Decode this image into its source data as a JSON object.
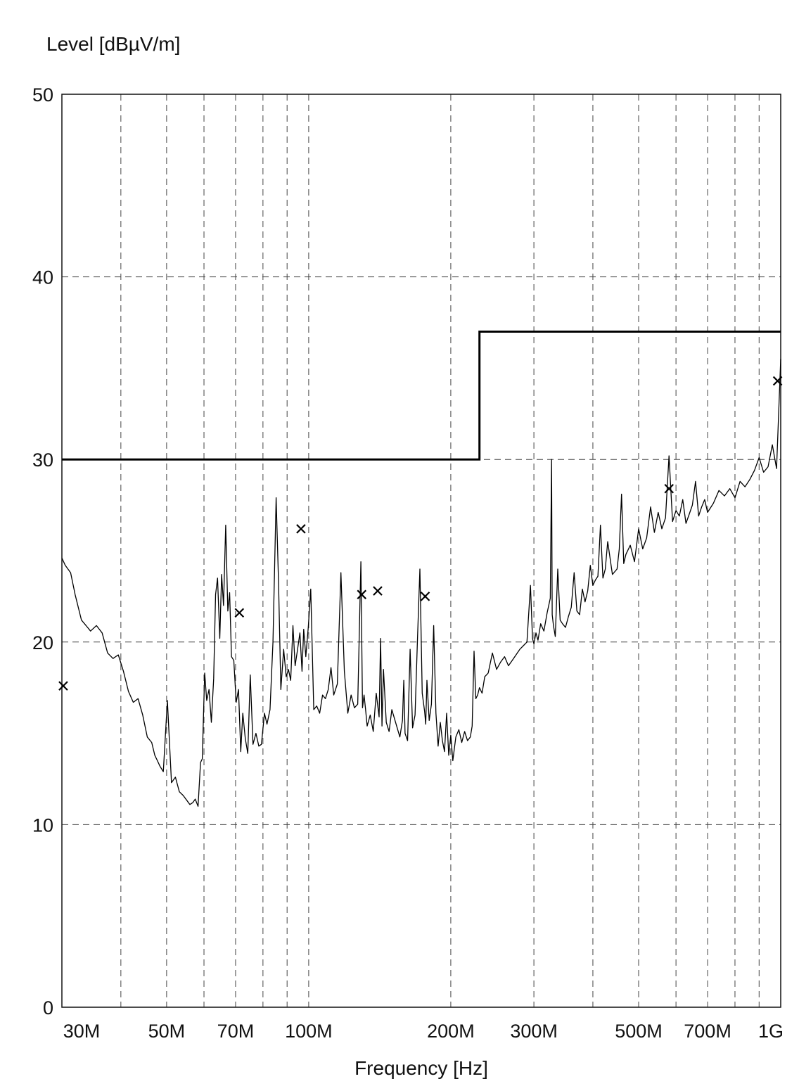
{
  "chart_data": {
    "type": "line",
    "title": "",
    "ylabel": "Level [dBµV/m]",
    "xlabel": "Frequency [Hz]",
    "x_scale": "log",
    "xlim_hz": [
      30000000,
      1000000000
    ],
    "ylim": [
      0,
      50
    ],
    "grid": true,
    "y_ticks": [
      {
        "value": 0,
        "label": "0"
      },
      {
        "value": 10,
        "label": "10"
      },
      {
        "value": 20,
        "label": "20"
      },
      {
        "value": 30,
        "label": "30"
      },
      {
        "value": 40,
        "label": "40"
      },
      {
        "value": 50,
        "label": "50"
      }
    ],
    "x_ticks": [
      {
        "value": 30000000,
        "label": "30M"
      },
      {
        "value": 50000000,
        "label": "50M"
      },
      {
        "value": 70000000,
        "label": "70M"
      },
      {
        "value": 100000000,
        "label": "100M"
      },
      {
        "value": 200000000,
        "label": "200M"
      },
      {
        "value": 300000000,
        "label": "300M"
      },
      {
        "value": 500000000,
        "label": "500M"
      },
      {
        "value": 700000000,
        "label": "700M"
      },
      {
        "value": 1000000000,
        "label": "1G"
      }
    ],
    "x_gridlines_hz": [
      40000000,
      50000000,
      60000000,
      70000000,
      80000000,
      90000000,
      100000000,
      200000000,
      300000000,
      400000000,
      500000000,
      600000000,
      700000000,
      800000000,
      900000000,
      1000000000
    ],
    "limit_line": {
      "x": [
        30000000,
        230000000,
        230000000,
        1000000000
      ],
      "y": [
        30,
        30,
        37,
        37
      ]
    },
    "measurement_trace": {
      "x": [
        30000000,
        30500000,
        31300000,
        32000000,
        33000000,
        34000000,
        34500000,
        35500000,
        36500000,
        37500000,
        38500000,
        39500000,
        40500000,
        41500000,
        42500000,
        43500000,
        44500000,
        45500000,
        46500000,
        47200000,
        47800000,
        48400000,
        49200000,
        50200000,
        51200000,
        52200000,
        53200000,
        54200000,
        55300000,
        56000000,
        56800000,
        57500000,
        58300000,
        59000000,
        59500000,
        60200000,
        60800000,
        61500000,
        62200000,
        62900000,
        63500000,
        64100000,
        64800000,
        65400000,
        66000000,
        66700000,
        67400000,
        68000000,
        68600000,
        69400000,
        70200000,
        71000000,
        71800000,
        72500000,
        73400000,
        74300000,
        75200000,
        76200000,
        77300000,
        78400000,
        79400000,
        80600000,
        81600000,
        82800000,
        84000000,
        85300000,
        86300000,
        87300000,
        88500000,
        89600000,
        90600000,
        91600000,
        92600000,
        93600000,
        94600000,
        95800000,
        96800000,
        97600000,
        98600000,
        99800000,
        101000000,
        102500000,
        104000000,
        105500000,
        107000000,
        108500000,
        110000000,
        111500000,
        113000000,
        115000000,
        117000000,
        119000000,
        121000000,
        123000000,
        125000000,
        127000000,
        129000000,
        130000000,
        131000000,
        132000000,
        133000000,
        135000000,
        137000000,
        139000000,
        141000000,
        142000000,
        143000000,
        144000000,
        146000000,
        148000000,
        150000000,
        152000000,
        154000000,
        156000000,
        158000000,
        159000000,
        160000000,
        162000000,
        164000000,
        166000000,
        168000000,
        170000000,
        172000000,
        174000000,
        176000000,
        177000000,
        178000000,
        180000000,
        182000000,
        184000000,
        186000000,
        188000000,
        190000000,
        192000000,
        194000000,
        196000000,
        198000000,
        200000000,
        202000000,
        205000000,
        208000000,
        211000000,
        214000000,
        217000000,
        220000000,
        222000000,
        224000000,
        226000000,
        228000000,
        230000000,
        233000000,
        236000000,
        240000000,
        245000000,
        250000000,
        255000000,
        260000000,
        265000000,
        270000000,
        275000000,
        280000000,
        285000000,
        290000000,
        295000000,
        298000000,
        300000000,
        303000000,
        306000000,
        310000000,
        315000000,
        320000000,
        325000000,
        327000000,
        328000000,
        330000000,
        333000000,
        337000000,
        341000000,
        345000000,
        350000000,
        355000000,
        360000000,
        365000000,
        370000000,
        375000000,
        380000000,
        385000000,
        390000000,
        395000000,
        400000000,
        405000000,
        410000000,
        415000000,
        420000000,
        425000000,
        430000000,
        440000000,
        450000000,
        455000000,
        460000000,
        465000000,
        470000000,
        480000000,
        490000000,
        500000000,
        510000000,
        520000000,
        530000000,
        540000000,
        550000000,
        560000000,
        570000000,
        580000000,
        590000000,
        600000000,
        610000000,
        620000000,
        630000000,
        640000000,
        650000000,
        660000000,
        670000000,
        680000000,
        690000000,
        700000000,
        720000000,
        740000000,
        760000000,
        780000000,
        800000000,
        820000000,
        840000000,
        860000000,
        880000000,
        900000000,
        920000000,
        940000000,
        960000000,
        980000000,
        1000000000
      ],
      "y": [
        24.6,
        24.2,
        23.8,
        22.6,
        21.2,
        20.8,
        20.6,
        20.9,
        20.5,
        19.4,
        19.1,
        19.3,
        18.4,
        17.3,
        16.7,
        16.9,
        16.0,
        14.8,
        14.5,
        13.8,
        13.5,
        13.2,
        12.9,
        16.8,
        12.3,
        12.6,
        11.8,
        11.6,
        11.3,
        11.1,
        11.2,
        11.4,
        11.0,
        13.4,
        13.6,
        18.3,
        16.8,
        17.4,
        15.6,
        18.0,
        22.6,
        23.5,
        20.2,
        23.7,
        22.0,
        26.4,
        21.7,
        22.7,
        19.2,
        19.0,
        16.7,
        17.4,
        14.0,
        16.1,
        14.7,
        13.9,
        18.2,
        14.4,
        15.0,
        14.3,
        14.4,
        16.1,
        15.5,
        16.3,
        20.0,
        27.9,
        23.3,
        17.4,
        19.6,
        18.1,
        18.5,
        17.9,
        20.9,
        18.7,
        19.5,
        20.5,
        18.4,
        20.7,
        19.2,
        20.8,
        22.9,
        16.3,
        16.5,
        16.1,
        17.1,
        16.9,
        17.4,
        18.6,
        17.1,
        17.7,
        23.8,
        18.4,
        16.1,
        17.1,
        16.4,
        16.6,
        24.4,
        16.4,
        17.1,
        16.3,
        15.4,
        16.0,
        15.1,
        17.2,
        15.9,
        20.2,
        15.4,
        18.5,
        15.6,
        15.1,
        16.3,
        15.8,
        15.3,
        14.8,
        15.7,
        17.9,
        15.0,
        14.6,
        19.6,
        15.3,
        16.0,
        20.2,
        24.0,
        17.2,
        16.2,
        15.5,
        17.9,
        15.7,
        16.6,
        20.9,
        16.1,
        14.3,
        15.6,
        14.6,
        14.0,
        16.1,
        13.8,
        14.9,
        13.5,
        14.8,
        15.2,
        14.5,
        15.1,
        14.6,
        14.8,
        15.4,
        19.5,
        16.9,
        17.1,
        17.5,
        17.2,
        18.1,
        18.3,
        19.4,
        18.5,
        18.9,
        19.2,
        18.7,
        19.0,
        19.3,
        19.6,
        19.8,
        20.0,
        23.1,
        20.2,
        19.9,
        20.5,
        20.1,
        21.0,
        20.6,
        21.6,
        22.4,
        30.0,
        21.5,
        20.9,
        20.3,
        24.0,
        21.2,
        21.0,
        20.8,
        21.4,
        21.9,
        23.8,
        21.7,
        21.5,
        22.9,
        22.2,
        22.8,
        24.2,
        23.1,
        23.4,
        23.6,
        26.4,
        23.5,
        24.0,
        25.5,
        23.7,
        24.0,
        25.1,
        28.1,
        24.3,
        24.8,
        25.3,
        24.4,
        26.2,
        25.1,
        25.7,
        27.4,
        26.0,
        27.1,
        26.2,
        26.8,
        30.2,
        26.6,
        27.2,
        26.9,
        27.8,
        26.5,
        27.0,
        27.5,
        28.8,
        26.9,
        27.4,
        27.8,
        27.1,
        27.6,
        28.3,
        28.0,
        28.4,
        27.9,
        28.8,
        28.5,
        28.9,
        29.4,
        30.1,
        29.3,
        29.6,
        30.8,
        29.5,
        35.5
      ]
    },
    "peak_markers": {
      "x": [
        30200000,
        71300000,
        96300000,
        129500000,
        140000000,
        176500000,
        580000000,
        985000000
      ],
      "y": [
        17.6,
        21.6,
        26.2,
        22.6,
        22.8,
        22.5,
        28.4,
        34.3
      ]
    }
  }
}
